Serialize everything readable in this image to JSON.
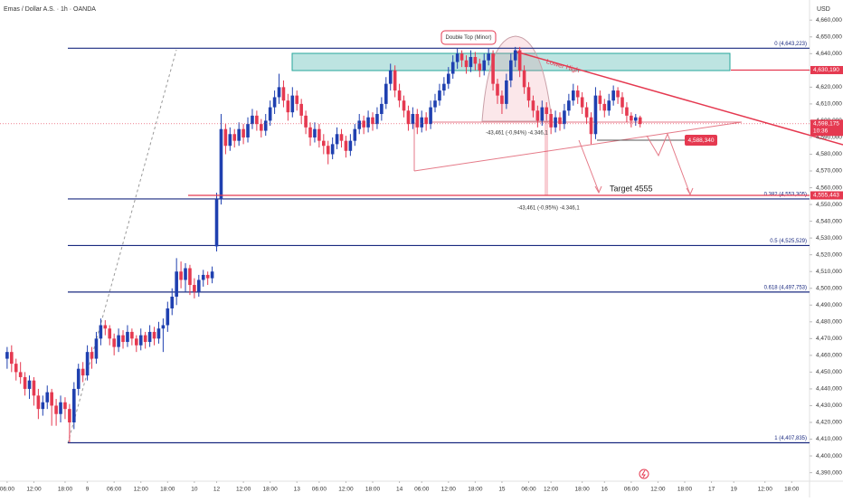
{
  "chart_data": {
    "type": "candlestick",
    "title": "Emas / Dollar A.S. · 1h · OANDA",
    "currency": "USD",
    "up_color": "#1f40b0",
    "down_color": "#e53950",
    "xlim": [
      -1.6,
      180
    ],
    "ylim": [
      4386,
      4672
    ],
    "xticks": [
      {
        "value": 0,
        "label": "06:00"
      },
      {
        "value": 6,
        "label": "12:00"
      },
      {
        "value": 13,
        "label": "18:00"
      },
      {
        "value": 18,
        "label": "9"
      },
      {
        "value": 24,
        "label": "06:00"
      },
      {
        "value": 30,
        "label": "12:00"
      },
      {
        "value": 36,
        "label": "18:00"
      },
      {
        "value": 42,
        "label": "10"
      },
      {
        "value": 47,
        "label": "12"
      },
      {
        "value": 53,
        "label": "12:00"
      },
      {
        "value": 59,
        "label": "18:00"
      },
      {
        "value": 65,
        "label": "13"
      },
      {
        "value": 70,
        "label": "06:00"
      },
      {
        "value": 76,
        "label": "12:00"
      },
      {
        "value": 82,
        "label": "18:00"
      },
      {
        "value": 88,
        "label": "14"
      },
      {
        "value": 93,
        "label": "06:00"
      },
      {
        "value": 99,
        "label": "12:00"
      },
      {
        "value": 105,
        "label": "18:00"
      },
      {
        "value": 111,
        "label": "15"
      },
      {
        "value": 117,
        "label": "06:00"
      },
      {
        "value": 122,
        "label": "12:00"
      },
      {
        "value": 129,
        "label": "18:00"
      },
      {
        "value": 134,
        "label": "16"
      },
      {
        "value": 140,
        "label": "06:00"
      },
      {
        "value": 146,
        "label": "12:00"
      },
      {
        "value": 152,
        "label": "18:00"
      },
      {
        "value": 158,
        "label": "17"
      },
      {
        "value": 163,
        "label": "19"
      },
      {
        "value": 170,
        "label": "12:00"
      },
      {
        "value": 176,
        "label": "18:00"
      }
    ],
    "yticks": [
      {
        "value": 4390,
        "label": "4,390,000"
      },
      {
        "value": 4400,
        "label": "4,400,000"
      },
      {
        "value": 4410,
        "label": "4,410,000"
      },
      {
        "value": 4420,
        "label": "4,420,000"
      },
      {
        "value": 4430,
        "label": "4,430,000"
      },
      {
        "value": 4440,
        "label": "4,440,000"
      },
      {
        "value": 4450,
        "label": "4,450,000"
      },
      {
        "value": 4460,
        "label": "4,460,000"
      },
      {
        "value": 4470,
        "label": "4,470,000"
      },
      {
        "value": 4480,
        "label": "4,480,000"
      },
      {
        "value": 4490,
        "label": "4,490,000"
      },
      {
        "value": 4500,
        "label": "4,500,000"
      },
      {
        "value": 4510,
        "label": "4,510,000"
      },
      {
        "value": 4520,
        "label": "4,520,000"
      },
      {
        "value": 4530,
        "label": "4,530,000"
      },
      {
        "value": 4540,
        "label": "4,540,000"
      },
      {
        "value": 4550,
        "label": "4,550,000"
      },
      {
        "value": 4560,
        "label": "4,560,000"
      },
      {
        "value": 4570,
        "label": "4,570,000"
      },
      {
        "value": 4580,
        "label": "4,580,000"
      },
      {
        "value": 4590,
        "label": "4,590,000"
      },
      {
        "value": 4600,
        "label": "4,600,000"
      },
      {
        "value": 4610,
        "label": "4,610,000"
      },
      {
        "value": 4620,
        "label": "4,620,000"
      },
      {
        "value": 4630,
        "label": "4,630,000"
      },
      {
        "value": 4640,
        "label": "4,640,000"
      },
      {
        "value": 4650,
        "label": "4,650,000"
      },
      {
        "value": 4660,
        "label": "4,660,000"
      }
    ],
    "candles": [
      [
        4458,
        4465,
        4452,
        4462
      ],
      [
        4462,
        4466,
        4450,
        4455
      ],
      [
        4455,
        4458,
        4445,
        4450
      ],
      [
        4450,
        4456,
        4443,
        4447
      ],
      [
        4447,
        4450,
        4436,
        4440
      ],
      [
        4440,
        4448,
        4434,
        4445
      ],
      [
        4445,
        4447,
        4430,
        4436
      ],
      [
        4436,
        4440,
        4422,
        4428
      ],
      [
        4428,
        4436,
        4424,
        4432
      ],
      [
        4432,
        4442,
        4428,
        4438
      ],
      [
        4438,
        4440,
        4418,
        4430
      ],
      [
        4430,
        4434,
        4418,
        4425
      ],
      [
        4425,
        4436,
        4420,
        4432
      ],
      [
        4432,
        4435,
        4422,
        4428
      ],
      [
        4428,
        4431,
        4408,
        4420
      ],
      [
        4420,
        4444,
        4416,
        4440
      ],
      [
        4440,
        4455,
        4436,
        4452
      ],
      [
        4452,
        4456,
        4444,
        4448
      ],
      [
        4448,
        4466,
        4445,
        4462
      ],
      [
        4462,
        4465,
        4452,
        4458
      ],
      [
        4458,
        4474,
        4455,
        4470
      ],
      [
        4470,
        4482,
        4466,
        4478
      ],
      [
        4478,
        4481,
        4472,
        4476
      ],
      [
        4476,
        4478,
        4466,
        4470
      ],
      [
        4470,
        4473,
        4460,
        4465
      ],
      [
        4465,
        4476,
        4462,
        4472
      ],
      [
        4472,
        4475,
        4464,
        4468
      ],
      [
        4468,
        4478,
        4465,
        4474
      ],
      [
        4474,
        4476,
        4466,
        4470
      ],
      [
        4470,
        4472,
        4462,
        4466
      ],
      [
        4466,
        4476,
        4463,
        4472
      ],
      [
        4472,
        4474,
        4464,
        4468
      ],
      [
        4468,
        4478,
        4465,
        4474
      ],
      [
        4474,
        4477,
        4466,
        4470
      ],
      [
        4470,
        4480,
        4467,
        4476
      ],
      [
        4476,
        4482,
        4462,
        4478
      ],
      [
        4478,
        4492,
        4474,
        4488
      ],
      [
        4488,
        4500,
        4484,
        4495
      ],
      [
        4495,
        4518,
        4490,
        4510
      ],
      [
        4510,
        4516,
        4500,
        4505
      ],
      [
        4505,
        4515,
        4498,
        4512
      ],
      [
        4512,
        4514,
        4496,
        4502
      ],
      [
        4502,
        4506,
        4494,
        4498
      ],
      [
        4498,
        4508,
        4495,
        4505
      ],
      [
        4505,
        4511,
        4501,
        4508
      ],
      [
        4508,
        4510,
        4502,
        4506
      ],
      [
        4506,
        4513,
        4503,
        4510
      ],
      [
        4525,
        4557,
        4522,
        4553
      ],
      [
        4553,
        4604,
        4550,
        4595
      ],
      [
        4595,
        4598,
        4580,
        4585
      ],
      [
        4585,
        4596,
        4582,
        4592
      ],
      [
        4592,
        4595,
        4584,
        4588
      ],
      [
        4588,
        4599,
        4585,
        4595
      ],
      [
        4595,
        4598,
        4586,
        4590
      ],
      [
        4590,
        4602,
        4587,
        4598
      ],
      [
        4598,
        4607,
        4595,
        4603
      ],
      [
        4603,
        4606,
        4594,
        4598
      ],
      [
        4598,
        4601,
        4590,
        4594
      ],
      [
        4594,
        4604,
        4591,
        4600
      ],
      [
        4600,
        4612,
        4597,
        4608
      ],
      [
        4608,
        4618,
        4604,
        4614
      ],
      [
        4614,
        4628,
        4610,
        4620
      ],
      [
        4620,
        4624,
        4608,
        4612
      ],
      [
        4612,
        4616,
        4600,
        4605
      ],
      [
        4605,
        4620,
        4602,
        4615
      ],
      [
        4615,
        4618,
        4606,
        4610
      ],
      [
        4610,
        4613,
        4598,
        4603
      ],
      [
        4603,
        4606,
        4592,
        4596
      ],
      [
        4596,
        4599,
        4585,
        4590
      ],
      [
        4590,
        4599,
        4587,
        4595
      ],
      [
        4595,
        4598,
        4584,
        4588
      ],
      [
        4588,
        4592,
        4580,
        4585
      ],
      [
        4585,
        4588,
        4574,
        4580
      ],
      [
        4580,
        4590,
        4577,
        4586
      ],
      [
        4586,
        4596,
        4583,
        4592
      ],
      [
        4592,
        4595,
        4584,
        4588
      ],
      [
        4588,
        4591,
        4578,
        4582
      ],
      [
        4582,
        4592,
        4579,
        4588
      ],
      [
        4588,
        4598,
        4585,
        4595
      ],
      [
        4595,
        4604,
        4592,
        4600
      ],
      [
        4600,
        4603,
        4592,
        4596
      ],
      [
        4596,
        4606,
        4593,
        4602
      ],
      [
        4602,
        4605,
        4594,
        4598
      ],
      [
        4598,
        4608,
        4595,
        4604
      ],
      [
        4604,
        4614,
        4600,
        4610
      ],
      [
        4610,
        4626,
        4607,
        4622
      ],
      [
        4622,
        4634,
        4618,
        4630
      ],
      [
        4630,
        4633,
        4614,
        4618
      ],
      [
        4618,
        4622,
        4608,
        4612
      ],
      [
        4612,
        4615,
        4602,
        4606
      ],
      [
        4606,
        4609,
        4594,
        4598
      ],
      [
        4598,
        4608,
        4595,
        4604
      ],
      [
        4604,
        4607,
        4592,
        4596
      ],
      [
        4596,
        4606,
        4593,
        4602
      ],
      [
        4602,
        4605,
        4594,
        4598
      ],
      [
        4598,
        4612,
        4595,
        4608
      ],
      [
        4608,
        4616,
        4605,
        4612
      ],
      [
        4612,
        4622,
        4609,
        4618
      ],
      [
        4618,
        4626,
        4615,
        4622
      ],
      [
        4622,
        4632,
        4619,
        4628
      ],
      [
        4628,
        4639,
        4625,
        4635
      ],
      [
        4635,
        4643,
        4631,
        4640
      ],
      [
        4640,
        4642,
        4632,
        4636
      ],
      [
        4636,
        4639,
        4628,
        4632
      ],
      [
        4632,
        4642,
        4629,
        4638
      ],
      [
        4638,
        4641,
        4630,
        4634
      ],
      [
        4634,
        4637,
        4626,
        4630
      ],
      [
        4630,
        4640,
        4627,
        4636
      ],
      [
        4636,
        4643,
        4633,
        4640
      ],
      [
        4640,
        4642,
        4618,
        4622
      ],
      [
        4622,
        4625,
        4610,
        4615
      ],
      [
        4615,
        4618,
        4604,
        4610
      ],
      [
        4610,
        4628,
        4607,
        4624
      ],
      [
        4624,
        4640,
        4620,
        4636
      ],
      [
        4636,
        4644,
        4632,
        4642
      ],
      [
        4642,
        4644,
        4626,
        4630
      ],
      [
        4630,
        4633,
        4616,
        4620
      ],
      [
        4620,
        4623,
        4608,
        4612
      ],
      [
        4612,
        4615,
        4602,
        4606
      ],
      [
        4606,
        4609,
        4596,
        4600
      ],
      [
        4600,
        4612,
        4597,
        4608
      ],
      [
        4608,
        4611,
        4600,
        4604
      ],
      [
        4604,
        4607,
        4592,
        4596
      ],
      [
        4596,
        4606,
        4593,
        4602
      ],
      [
        4602,
        4605,
        4594,
        4598
      ],
      [
        4598,
        4610,
        4595,
        4606
      ],
      [
        4606,
        4616,
        4603,
        4612
      ],
      [
        4612,
        4622,
        4609,
        4618
      ],
      [
        4618,
        4621,
        4610,
        4614
      ],
      [
        4614,
        4617,
        4604,
        4608
      ],
      [
        4608,
        4611,
        4598,
        4602
      ],
      [
        4602,
        4605,
        4586,
        4592
      ],
      [
        4592,
        4620,
        4589,
        4615
      ],
      [
        4615,
        4618,
        4606,
        4610
      ],
      [
        4610,
        4613,
        4602,
        4606
      ],
      [
        4606,
        4616,
        4603,
        4612
      ],
      [
        4612,
        4621,
        4609,
        4618
      ],
      [
        4618,
        4620,
        4610,
        4614
      ],
      [
        4614,
        4617,
        4604,
        4608
      ],
      [
        4608,
        4611,
        4599,
        4603
      ],
      [
        4603,
        4605,
        4596,
        4600
      ],
      [
        4600,
        4604,
        4597,
        4602
      ],
      [
        4602,
        4603,
        4596,
        4598
      ]
    ],
    "fib_color": "#1a2a80",
    "fib_levels": [
      {
        "value": 4643.223,
        "label": "0 (4,643,223)"
      },
      {
        "value": 4553.305,
        "label": "0.382 (4,553,305)"
      },
      {
        "value": 4525.529,
        "label": "0.5 (4,525,529)"
      },
      {
        "value": 4497.753,
        "label": "0.618 (4,497,753)"
      },
      {
        "value": 4407.835,
        "label": "1 (4,407,835)"
      }
    ],
    "tag_color": "#e53950",
    "price_tags": [
      {
        "value": 4630.19,
        "label": "4,630,190"
      },
      {
        "value": 4555.443,
        "label": "4,555,443"
      },
      {
        "value": 4598.175,
        "label": "4,598,175",
        "time": "10:36"
      }
    ],
    "marker_tag": {
      "value": 4588.34,
      "label": "4,588,340"
    },
    "annotations": {
      "double_top": "Double Top (Minor)",
      "lower_high": "Lower High",
      "target": "Target 4555",
      "measure_1": "-43,461 (-0,94%) -4.346,1",
      "measure_2": "-43,461 (-0,95%) -4.346,1"
    }
  }
}
